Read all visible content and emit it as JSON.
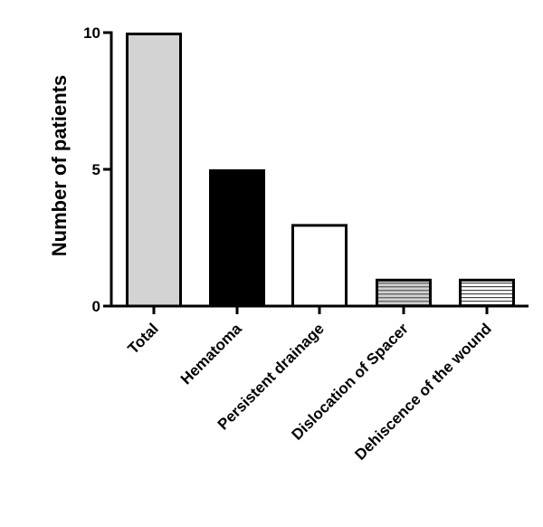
{
  "chart_data": {
    "type": "bar",
    "title": "",
    "xlabel": "",
    "ylabel": "Number of patients",
    "categories": [
      "Total",
      "Hematoma",
      "Persistent drainage",
      "Dislocation of Spacer",
      "Dehiscence of the wound"
    ],
    "values": [
      10,
      5,
      3,
      1,
      1
    ],
    "ylim": [
      0,
      10
    ],
    "yticks": [
      "0",
      "5",
      "10"
    ],
    "grid": false,
    "legend": "none",
    "bar_fills": [
      "solid-light-gray",
      "solid-black",
      "solid-white",
      "horizontal-stripes-gray",
      "horizontal-stripes-white"
    ],
    "colors": {
      "total": "#d3d3d3",
      "hematoma": "#000000",
      "persistent": "#ffffff",
      "stripe_dark": "#888888",
      "stripe_light": "#ffffff",
      "stroke": "#000000"
    }
  }
}
